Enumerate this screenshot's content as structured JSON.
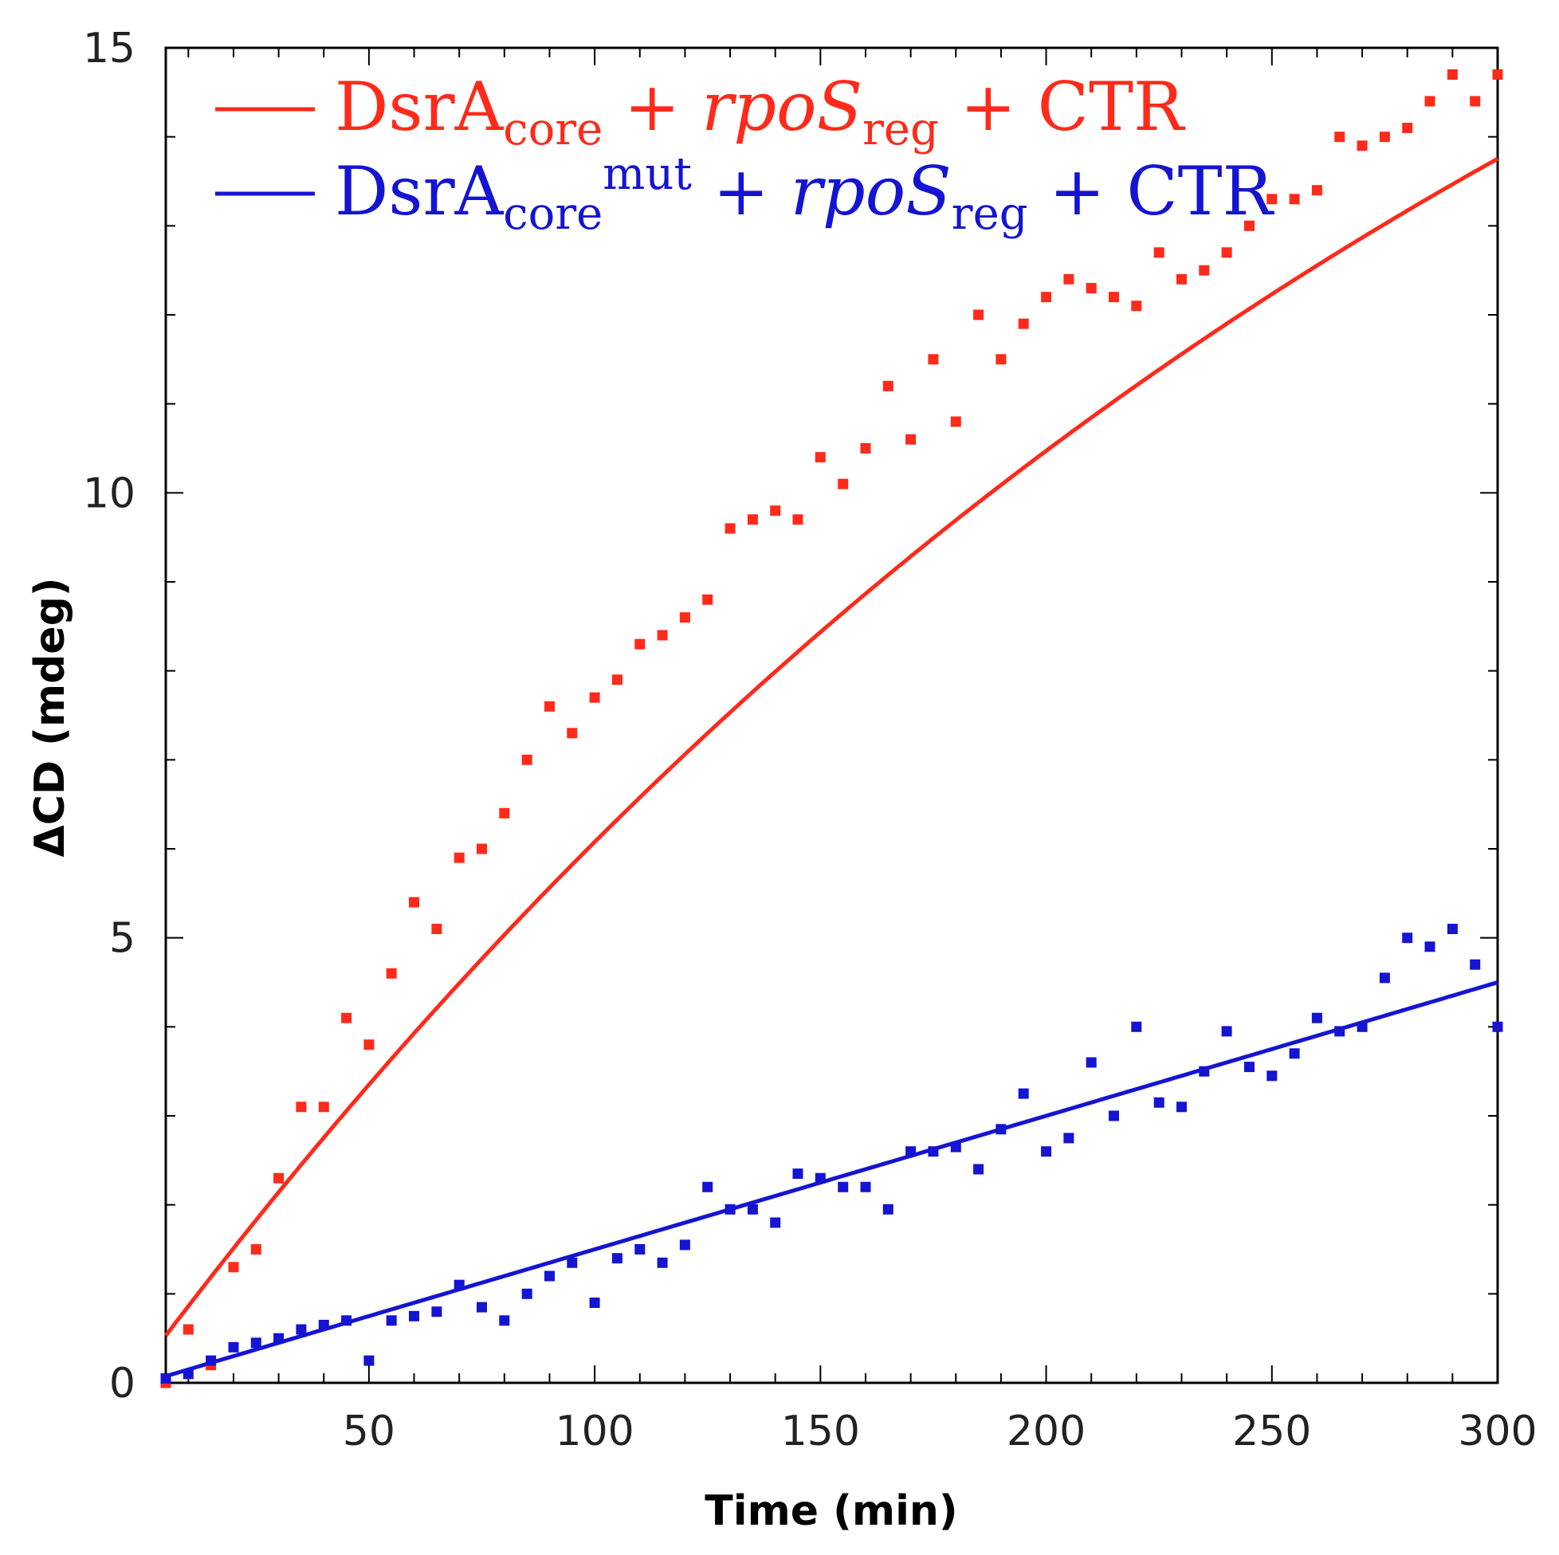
{
  "chart_data": {
    "type": "scatter",
    "title": "",
    "xlabel": "Time (min)",
    "ylabel": "ΔCD (mdeg)",
    "xlim": [
      5,
      300
    ],
    "ylim": [
      0,
      15
    ],
    "xticks": [
      50,
      100,
      150,
      200,
      250,
      300
    ],
    "yticks": [
      0,
      5,
      10,
      15
    ],
    "x_tick_labels": [
      "50",
      "100",
      "150",
      "200",
      "250",
      "300"
    ],
    "y_tick_labels": [
      "0",
      "5",
      "10",
      "15"
    ],
    "grid": false,
    "legend_position": "top-left",
    "series": [
      {
        "name": "DsrAcore + rpoSreg + CTR",
        "legend": {
          "main1": "DsrA",
          "sub1": "core",
          "plus1": " + ",
          "ital": "rpoS",
          "sub2": "reg",
          "plus2": " + CTR",
          "sup": ""
        },
        "color": "#ff2a1a",
        "x": [
          5,
          10,
          15,
          20,
          25,
          30,
          35,
          40,
          45,
          50,
          55,
          60,
          65,
          70,
          75,
          80,
          85,
          90,
          95,
          100,
          105,
          110,
          115,
          120,
          125,
          130,
          135,
          140,
          145,
          150,
          155,
          160,
          165,
          170,
          175,
          180,
          185,
          190,
          195,
          200,
          205,
          210,
          215,
          220,
          225,
          230,
          235,
          240,
          245,
          250,
          255,
          260,
          265,
          270,
          275,
          280,
          285,
          290,
          295,
          300
        ],
        "y": [
          0.0,
          0.6,
          0.2,
          1.3,
          1.5,
          2.3,
          3.1,
          3.1,
          4.1,
          3.8,
          4.6,
          5.4,
          5.1,
          5.9,
          6.0,
          6.4,
          7.0,
          7.6,
          7.3,
          7.7,
          7.9,
          8.3,
          8.4,
          8.6,
          8.8,
          9.6,
          9.7,
          9.8,
          9.7,
          10.4,
          10.1,
          10.5,
          11.2,
          10.6,
          11.5,
          10.8,
          12.0,
          11.5,
          11.9,
          12.2,
          12.4,
          12.3,
          12.2,
          12.1,
          12.7,
          12.4,
          12.5,
          12.7,
          13.0,
          13.3,
          13.3,
          13.4,
          14.0,
          13.9,
          14.0,
          14.1,
          14.4,
          14.7,
          14.4,
          14.7
        ]
      },
      {
        "name": "DsrAcoremut + rpoSreg + CTR",
        "legend": {
          "main1": "DsrA",
          "sub1": "core",
          "plus1": " + ",
          "ital": "rpoS",
          "sub2": "reg",
          "plus2": " + CTR",
          "sup": "mut"
        },
        "color": "#1414d2",
        "x": [
          5,
          10,
          15,
          20,
          25,
          30,
          35,
          40,
          45,
          50,
          55,
          60,
          65,
          70,
          75,
          80,
          85,
          90,
          95,
          100,
          105,
          110,
          115,
          120,
          125,
          130,
          135,
          140,
          145,
          150,
          155,
          160,
          165,
          170,
          175,
          180,
          185,
          190,
          195,
          200,
          205,
          210,
          215,
          220,
          225,
          230,
          235,
          240,
          245,
          250,
          255,
          260,
          265,
          270,
          275,
          280,
          285,
          290,
          295,
          300
        ],
        "y": [
          0.05,
          0.1,
          0.25,
          0.4,
          0.45,
          0.5,
          0.6,
          0.65,
          0.7,
          0.25,
          0.7,
          0.75,
          0.8,
          1.1,
          0.85,
          0.7,
          1.0,
          1.2,
          1.35,
          0.9,
          1.4,
          1.5,
          1.35,
          1.55,
          2.2,
          1.95,
          1.95,
          1.8,
          2.35,
          2.3,
          2.2,
          2.2,
          1.95,
          2.6,
          2.6,
          2.65,
          2.4,
          2.85,
          3.25,
          2.6,
          2.75,
          3.6,
          3.0,
          4.0,
          3.15,
          3.1,
          3.5,
          3.95,
          3.55,
          3.45,
          3.7,
          4.1,
          3.95,
          4.0,
          4.55,
          5.0,
          4.9,
          5.1,
          4.7,
          4.0
        ]
      }
    ],
    "fit_lines": [
      {
        "series": "DsrAcore + rpoSreg + CTR",
        "color": "#ff2a1a",
        "a": 22.9,
        "k": 0.00292,
        "c": 0.53
      },
      {
        "series": "DsrAcoremut + rpoSreg + CTR",
        "color": "#1414d2",
        "slope": 0.015,
        "intercept": 0.0
      }
    ]
  }
}
